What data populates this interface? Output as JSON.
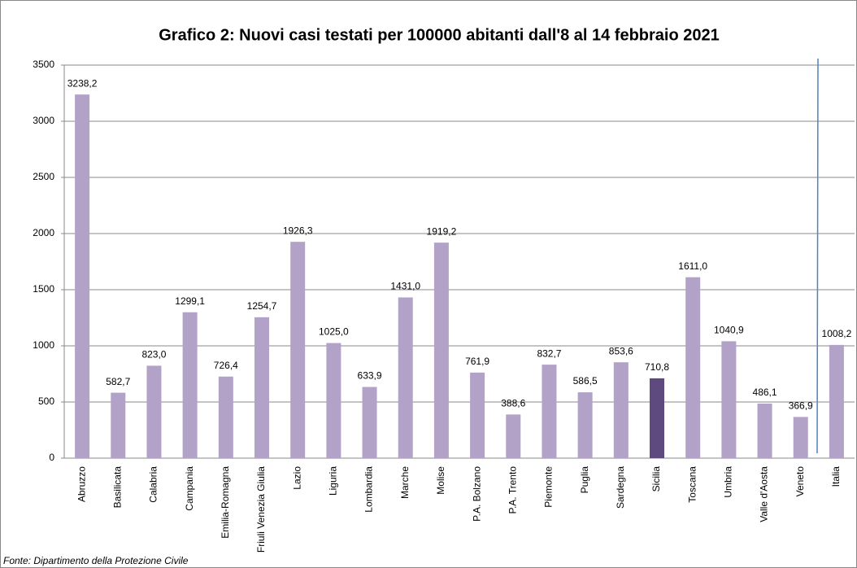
{
  "chart_data": {
    "type": "bar",
    "title": "Grafico 2: Nuovi casi testati per 100000 abitanti dall'8 al 14 febbraio 2021",
    "categories": [
      "Abruzzo",
      "Basilicata",
      "Calabria",
      "Campania",
      "Emilia-Romagna",
      "Friuli Venezia Giulia",
      "Lazio",
      "Liguria",
      "Lombardia",
      "Marche",
      "Molise",
      "P.A. Bolzano",
      "P.A. Trento",
      "Piemonte",
      "Puglia",
      "Sardegna",
      "Sicilia",
      "Toscana",
      "Umbria",
      "Valle d'Aosta",
      "Veneto",
      "Italia"
    ],
    "values": [
      3238.2,
      582.7,
      823.0,
      1299.1,
      726.4,
      1254.7,
      1926.3,
      1025.0,
      633.9,
      1431.0,
      1919.2,
      761.9,
      388.6,
      832.7,
      586.5,
      853.6,
      710.8,
      1611.0,
      1040.9,
      486.1,
      366.9,
      1008.2
    ],
    "value_labels": [
      "3238,2",
      "582,7",
      "823,0",
      "1299,1",
      "726,4",
      "1254,7",
      "1926,3",
      "1025,0",
      "633,9",
      "1431,0",
      "1919,2",
      "761,9",
      "388,6",
      "832,7",
      "586,5",
      "853,6",
      "710,8",
      "1611,0",
      "1040,9",
      "486,1",
      "366,9",
      "1008,2"
    ],
    "colors": [
      "#b3a2c8",
      "#b3a2c8",
      "#b3a2c8",
      "#b3a2c8",
      "#b3a2c8",
      "#b3a2c8",
      "#b3a2c8",
      "#b3a2c8",
      "#b3a2c8",
      "#b3a2c8",
      "#b3a2c8",
      "#b3a2c8",
      "#b3a2c8",
      "#b3a2c8",
      "#b3a2c8",
      "#b3a2c8",
      "#5f4a7f",
      "#b3a2c8",
      "#b3a2c8",
      "#b3a2c8",
      "#b3a2c8",
      "#b3a2c8"
    ],
    "ylim": [
      0,
      3500
    ],
    "yticks": [
      0,
      500,
      1000,
      1500,
      2000,
      2500,
      3000,
      3500
    ],
    "grid": true,
    "source": "Fonte: Dipartimento della Protezione Civile"
  }
}
